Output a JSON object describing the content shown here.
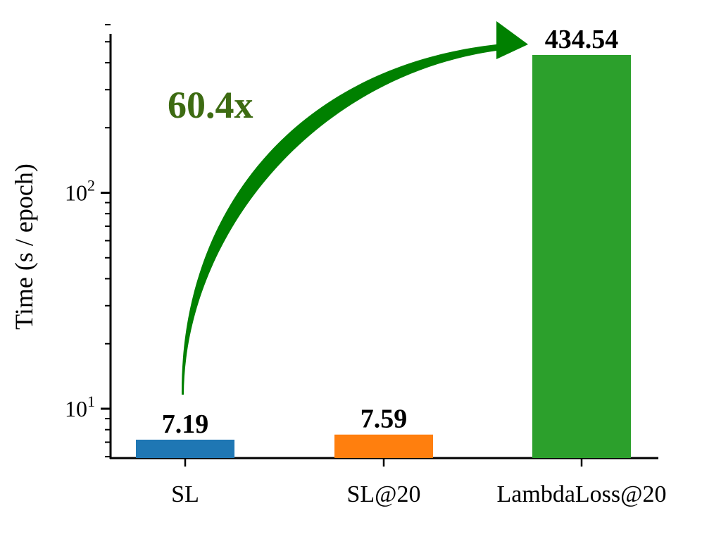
{
  "chart_data": {
    "type": "bar",
    "categories": [
      "SL",
      "SL@20",
      "LambdaLoss@20"
    ],
    "values": [
      7.19,
      7.59,
      434.54
    ],
    "value_labels": [
      "7.19",
      "7.59",
      "434.54"
    ],
    "bar_colors": [
      "#1f77b4",
      "#ff7f0e",
      "#2ca02c"
    ],
    "ylabel": "Time (s / epoch)",
    "xlabel": "",
    "title": "",
    "yscale": "log",
    "ylim": [
      5.8,
      680
    ],
    "major_ticks": [
      {
        "value": 10,
        "base": "10",
        "exp": "1"
      },
      {
        "value": 100,
        "base": "10",
        "exp": "2"
      }
    ],
    "annotation": {
      "text": "60.4x",
      "color": "#3d6b12",
      "arrow_color": "#008000",
      "from_category": "SL",
      "to_category": "LambdaLoss@20"
    },
    "grid": false,
    "legend": "none"
  }
}
